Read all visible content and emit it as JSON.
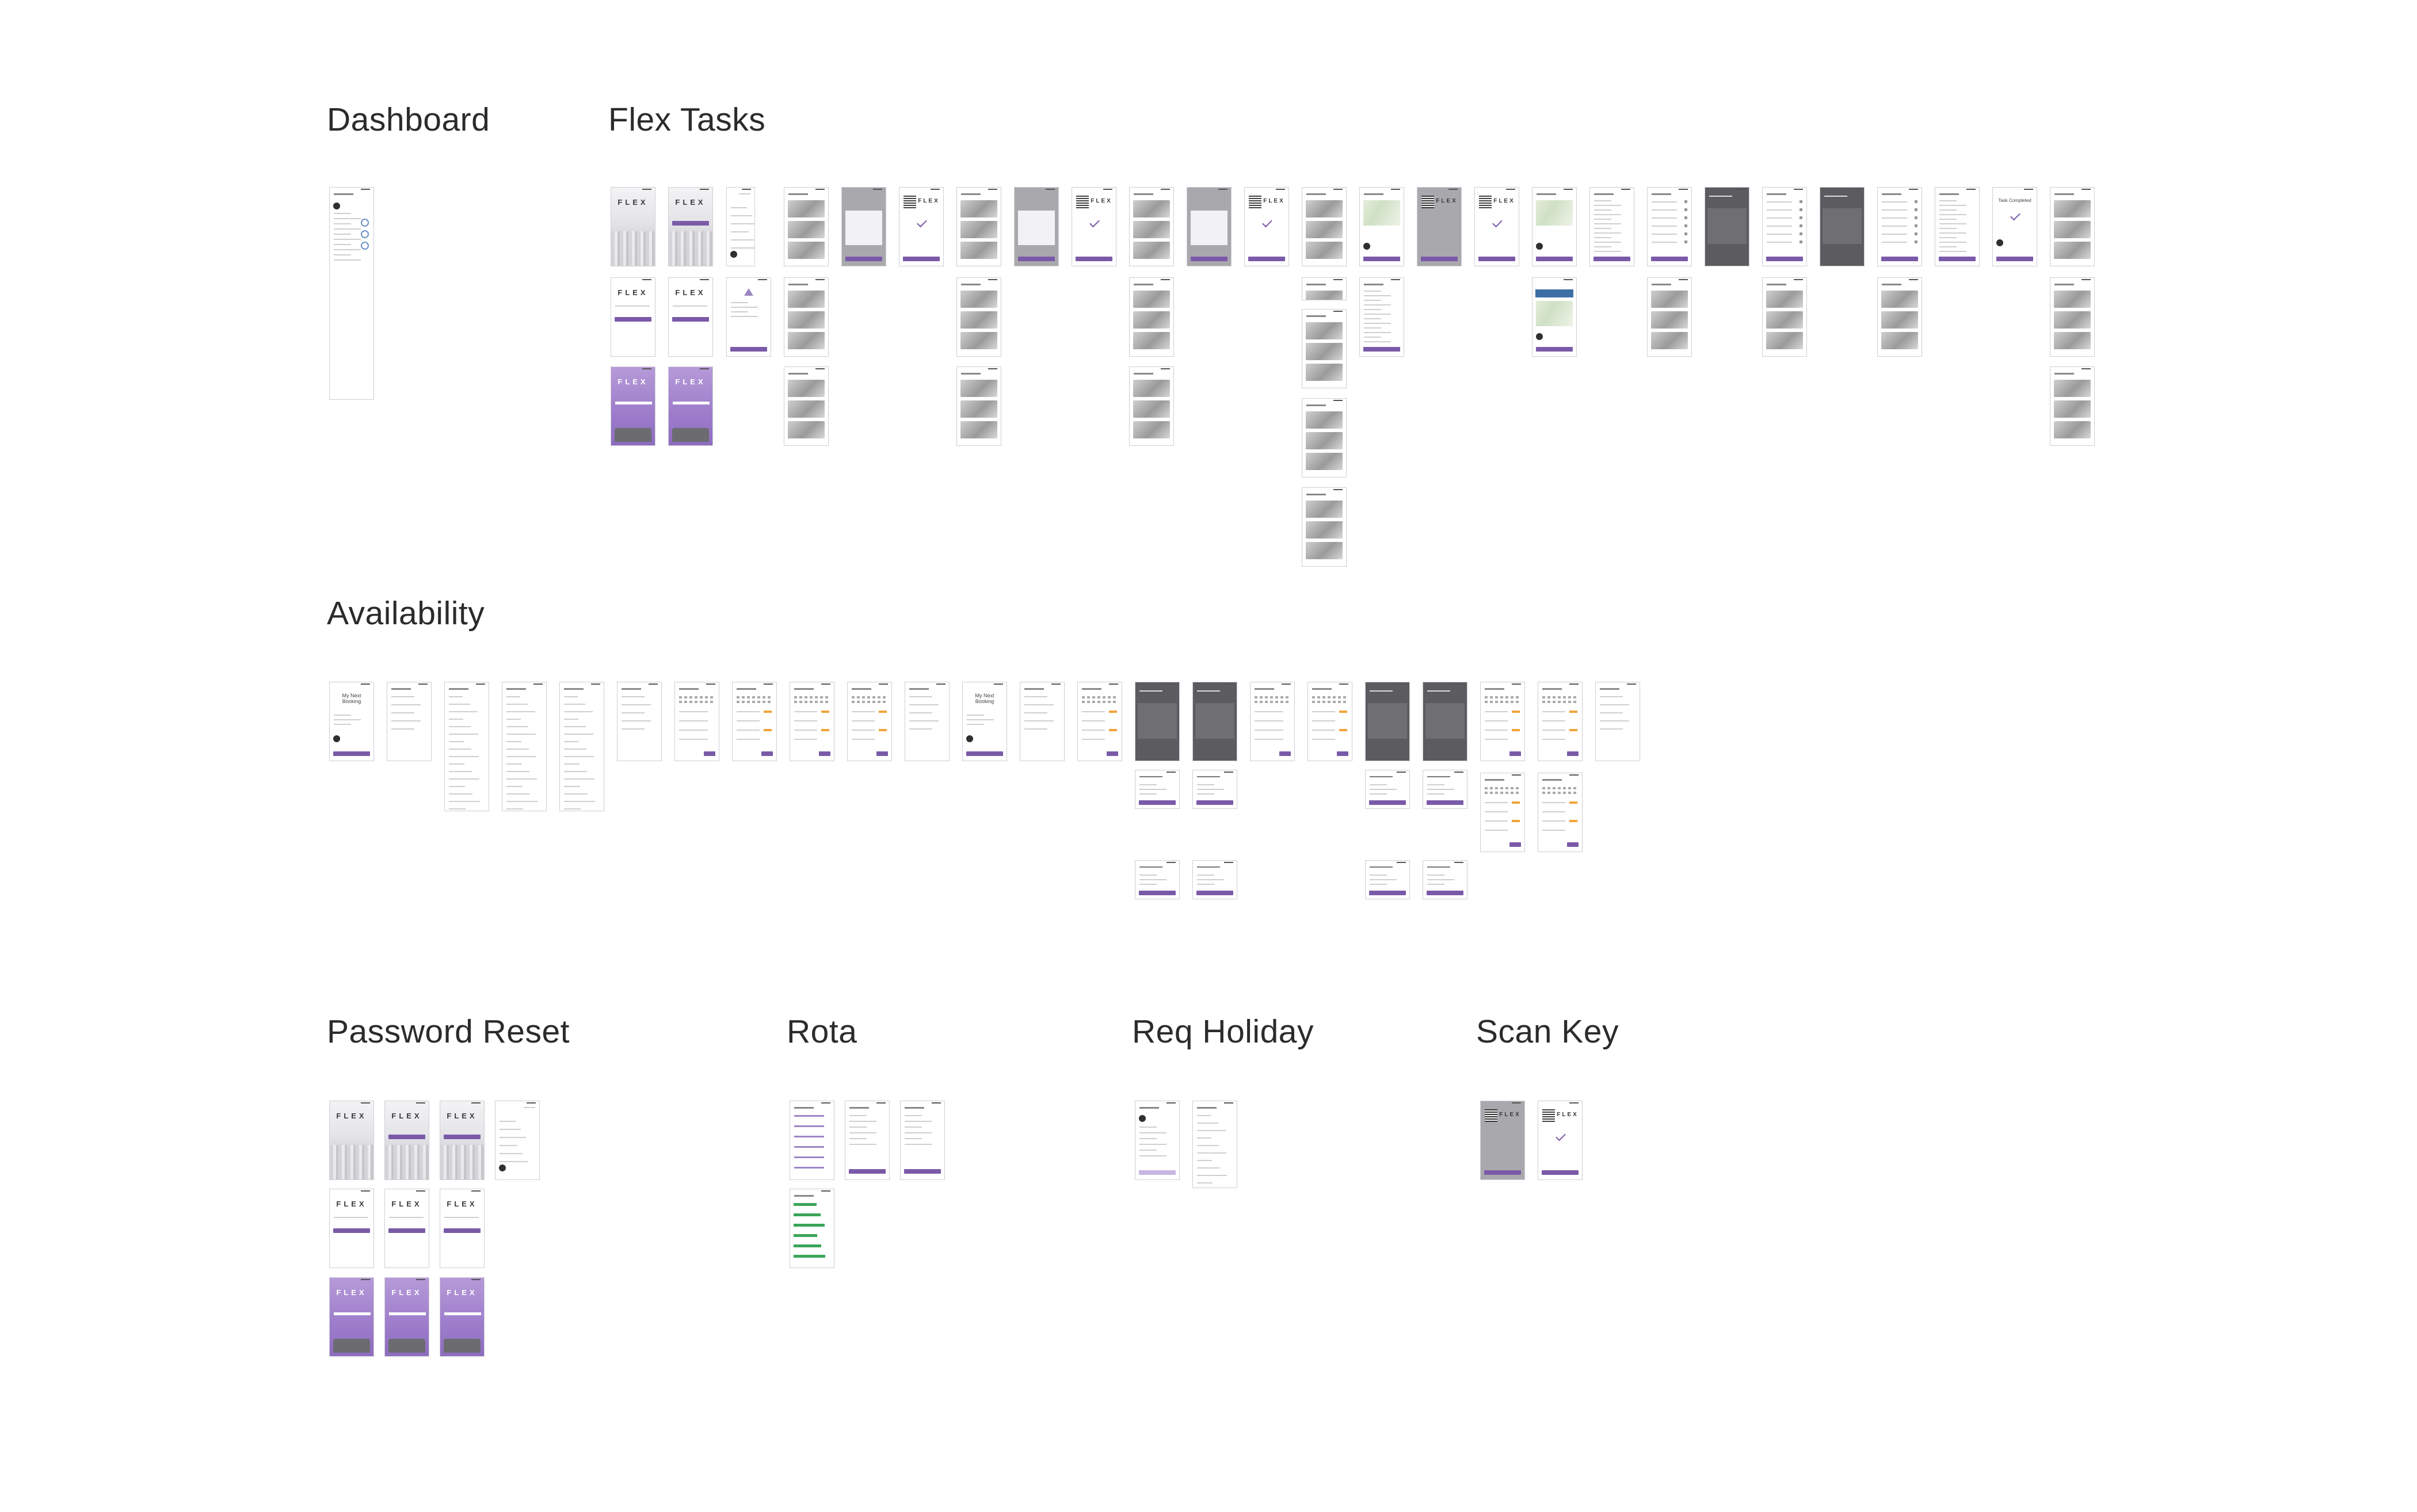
{
  "sections": {
    "dashboard": "Dashboard",
    "flex_tasks": "Flex Tasks",
    "availability": "Availability",
    "password_reset": "Password Reset",
    "rota": "Rota",
    "req_holiday": "Req Holiday",
    "scan_key": "Scan Key"
  },
  "logo_text": "FLEX",
  "screen_titles": {
    "my_next_booking": "My Next Booking",
    "task_completed": "Task Completed"
  },
  "colors": {
    "accent_purple": "#7a5aa8",
    "light_purple": "#b69ad8",
    "status_orange": "#f0a43a",
    "status_blue": "#3d6fa6",
    "status_green": "#3aa45a"
  }
}
